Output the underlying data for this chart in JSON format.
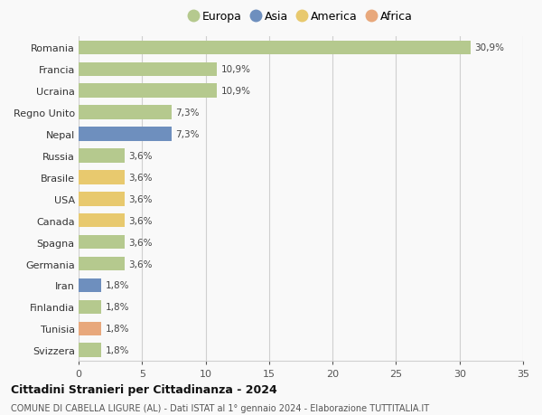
{
  "countries": [
    "Romania",
    "Francia",
    "Ucraina",
    "Regno Unito",
    "Nepal",
    "Russia",
    "Brasile",
    "USA",
    "Canada",
    "Spagna",
    "Germania",
    "Iran",
    "Finlandia",
    "Tunisia",
    "Svizzera"
  ],
  "values": [
    30.9,
    10.9,
    10.9,
    7.3,
    7.3,
    3.6,
    3.6,
    3.6,
    3.6,
    3.6,
    3.6,
    1.8,
    1.8,
    1.8,
    1.8
  ],
  "continents": [
    "Europa",
    "Europa",
    "Europa",
    "Europa",
    "Asia",
    "Europa",
    "America",
    "America",
    "America",
    "Europa",
    "Europa",
    "Asia",
    "Europa",
    "Africa",
    "Europa"
  ],
  "labels": [
    "30,9%",
    "10,9%",
    "10,9%",
    "7,3%",
    "7,3%",
    "3,6%",
    "3,6%",
    "3,6%",
    "3,6%",
    "3,6%",
    "3,6%",
    "1,8%",
    "1,8%",
    "1,8%",
    "1,8%"
  ],
  "continent_colors": {
    "Europa": "#b5c98e",
    "Asia": "#6e8fbe",
    "America": "#e8c96e",
    "Africa": "#e8a87c"
  },
  "legend_order": [
    "Europa",
    "Asia",
    "America",
    "Africa"
  ],
  "xlim": [
    0,
    35
  ],
  "xticks": [
    0,
    5,
    10,
    15,
    20,
    25,
    30,
    35
  ],
  "title": "Cittadini Stranieri per Cittadinanza - 2024",
  "subtitle": "COMUNE DI CABELLA LIGURE (AL) - Dati ISTAT al 1° gennaio 2024 - Elaborazione TUTTITALIA.IT",
  "background_color": "#f9f9f9",
  "grid_color": "#d0d0d0"
}
